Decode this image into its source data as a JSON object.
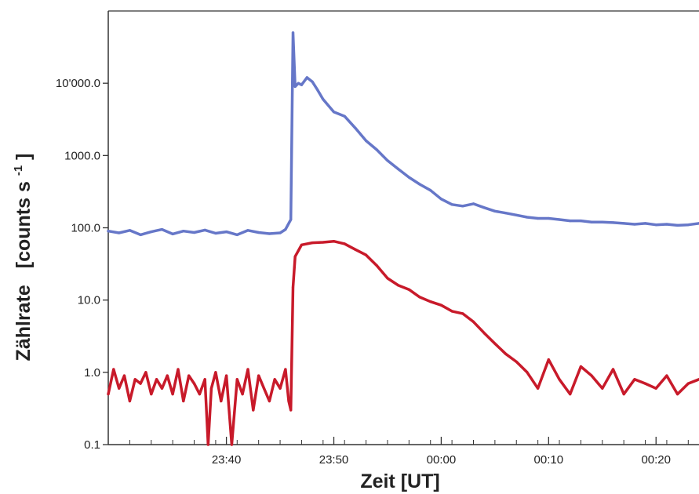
{
  "chart_data": {
    "type": "line",
    "xlabel": "Zeit [UT]",
    "ylabel_main": "Zählrate",
    "ylabel_unit": "[counts s",
    "ylabel_exp": "-1",
    "ylabel_close": "]",
    "yscale": "log",
    "ylim": [
      0.1,
      100000
    ],
    "xlim": [
      "23:29",
      "00:24"
    ],
    "grid": false,
    "y_ticks": [
      {
        "value": 0.1,
        "label": "0.1"
      },
      {
        "value": 1,
        "label": "1.0"
      },
      {
        "value": 10,
        "label": "10.0"
      },
      {
        "value": 100,
        "label": "100.0"
      },
      {
        "value": 1000,
        "label": "1000.0"
      },
      {
        "value": 10000,
        "label": "10'000.0"
      }
    ],
    "x_ticks": [
      {
        "value": "23:40",
        "label": "23:40"
      },
      {
        "value": "23:50",
        "label": "23:50"
      },
      {
        "value": "00:00",
        "label": "00:00"
      },
      {
        "value": "00:10",
        "label": "00:10"
      },
      {
        "value": "00:20",
        "label": "00:20"
      }
    ],
    "x_minor_ticks": [
      "23:31",
      "23:33",
      "23:35",
      "23:37",
      "23:39",
      "23:41",
      "23:43",
      "23:45",
      "23:47",
      "23:49",
      "23:51",
      "23:53",
      "23:55",
      "23:57",
      "23:59",
      "00:01",
      "00:03",
      "00:05",
      "00:07",
      "00:09",
      "00:11",
      "00:13",
      "00:15",
      "00:17",
      "00:19",
      "00:21",
      "00:23"
    ],
    "series": [
      {
        "color": "#6677c8",
        "x": [
          "23:29",
          "23:30",
          "23:31",
          "23:32",
          "23:33",
          "23:34",
          "23:35",
          "23:36",
          "23:37",
          "23:38",
          "23:39",
          "23:40",
          "23:41",
          "23:42",
          "23:43",
          "23:44",
          "23:45",
          "23:45.5",
          "23:46",
          "23:46.2",
          "23:46.4",
          "23:46.7",
          "23:47",
          "23:47.5",
          "23:48",
          "23:48.5",
          "23:49",
          "23:50",
          "23:51",
          "23:52",
          "23:53",
          "23:54",
          "23:55",
          "23:56",
          "23:57",
          "23:58",
          "23:59",
          "00:00",
          "00:01",
          "00:02",
          "00:03",
          "00:04",
          "00:05",
          "00:06",
          "00:07",
          "00:08",
          "00:09",
          "00:10",
          "00:11",
          "00:12",
          "00:13",
          "00:14",
          "00:15",
          "00:16",
          "00:17",
          "00:18",
          "00:19",
          "00:20",
          "00:21",
          "00:22",
          "00:23",
          "00:24"
        ],
        "y": [
          90,
          85,
          92,
          80,
          88,
          95,
          82,
          90,
          86,
          93,
          84,
          88,
          80,
          92,
          86,
          83,
          85,
          95,
          130,
          50000,
          9000,
          10000,
          9500,
          12000,
          10500,
          8000,
          6000,
          4000,
          3500,
          2400,
          1600,
          1200,
          850,
          650,
          500,
          400,
          330,
          250,
          210,
          200,
          215,
          190,
          170,
          160,
          150,
          140,
          135,
          135,
          130,
          125,
          125,
          120,
          120,
          118,
          115,
          112,
          115,
          110,
          112,
          108,
          110,
          115
        ]
      },
      {
        "color": "#c81a2a",
        "x": [
          "23:29",
          "23:29.5",
          "23:30",
          "23:30.5",
          "23:31",
          "23:31.5",
          "23:32",
          "23:32.5",
          "23:33",
          "23:33.5",
          "23:34",
          "23:34.5",
          "23:35",
          "23:35.5",
          "23:36",
          "23:36.5",
          "23:37",
          "23:37.5",
          "23:38",
          "23:38.3",
          "23:38.6",
          "23:39",
          "23:39.5",
          "23:40",
          "23:40.5",
          "23:41",
          "23:41.5",
          "23:42",
          "23:42.5",
          "23:43",
          "23:43.5",
          "23:44",
          "23:44.5",
          "23:45",
          "23:45.5",
          "23:45.8",
          "23:46",
          "23:46.2",
          "23:46.4",
          "23:47",
          "23:48",
          "23:49",
          "23:50",
          "23:51",
          "23:52",
          "23:53",
          "23:54",
          "23:55",
          "23:56",
          "23:57",
          "23:58",
          "23:59",
          "00:00",
          "00:01",
          "00:02",
          "00:03",
          "00:04",
          "00:05",
          "00:06",
          "00:07",
          "00:08",
          "00:09",
          "00:10",
          "00:11",
          "00:12",
          "00:13",
          "00:14",
          "00:15",
          "00:16",
          "00:17",
          "00:18",
          "00:19",
          "00:20",
          "00:21",
          "00:22",
          "00:23",
          "00:24"
        ],
        "y": [
          0.5,
          1.1,
          0.6,
          0.9,
          0.4,
          0.8,
          0.7,
          1.0,
          0.5,
          0.8,
          0.6,
          0.9,
          0.5,
          1.1,
          0.4,
          0.9,
          0.7,
          0.5,
          0.8,
          0.1,
          0.6,
          1.0,
          0.4,
          0.9,
          0.1,
          0.8,
          0.5,
          1.1,
          0.3,
          0.9,
          0.6,
          0.4,
          0.8,
          0.6,
          1.1,
          0.4,
          0.3,
          15,
          40,
          58,
          62,
          63,
          65,
          60,
          50,
          42,
          30,
          20,
          16,
          14,
          11,
          9.5,
          8.5,
          7,
          6.5,
          5,
          3.5,
          2.5,
          1.8,
          1.4,
          1.0,
          0.6,
          1.5,
          0.8,
          0.5,
          1.2,
          0.9,
          0.6,
          1.1,
          0.5,
          0.8,
          0.7,
          0.6,
          0.9,
          0.5,
          0.7,
          0.8
        ]
      }
    ]
  }
}
